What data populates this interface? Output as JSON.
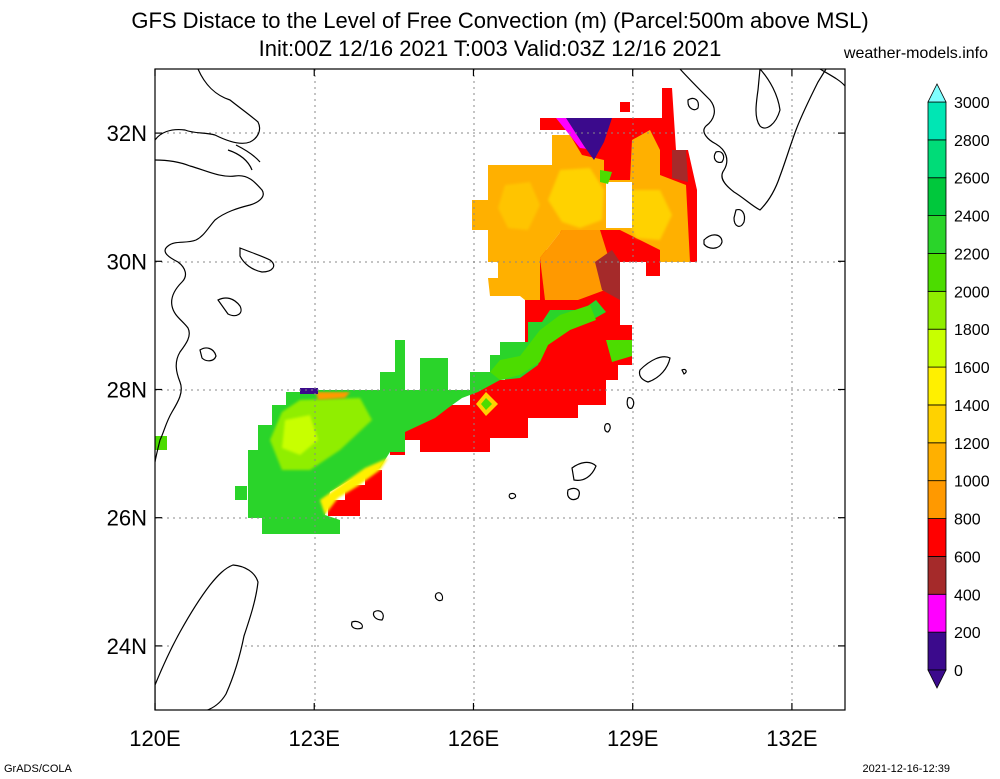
{
  "header": {
    "title_line1": "GFS Distace to the Level of Free Convection (m) (Parcel:500m above MSL)",
    "title_line2": "Init:00Z 12/16 2021 T:003 Valid:03Z 12/16 2021",
    "site": "weather-models.info"
  },
  "footer": {
    "left": "GrADS/COLA",
    "right": "2021-12-16-12:39"
  },
  "map": {
    "lon_range": [
      120,
      133
    ],
    "lat_range": [
      23,
      33
    ],
    "lon_ticks": [
      {
        "value": 120,
        "label": "120E"
      },
      {
        "value": 123,
        "label": "123E"
      },
      {
        "value": 126,
        "label": "126E"
      },
      {
        "value": 129,
        "label": "129E"
      },
      {
        "value": 132,
        "label": "132E"
      }
    ],
    "lat_ticks": [
      {
        "value": 24,
        "label": "24N"
      },
      {
        "value": 26,
        "label": "26N"
      },
      {
        "value": 28,
        "label": "28N"
      },
      {
        "value": 30,
        "label": "30N"
      },
      {
        "value": 32,
        "label": "32N"
      }
    ],
    "grid": "dotted"
  },
  "colorbar": {
    "levels": [
      {
        "label": "0",
        "color": "#3b0a8c"
      },
      {
        "label": "200",
        "color": "#ff00ff"
      },
      {
        "label": "400",
        "color": "#a52a2a"
      },
      {
        "label": "600",
        "color": "#ff0000"
      },
      {
        "label": "800",
        "color": "#ff9900"
      },
      {
        "label": "1000",
        "color": "#ffb000"
      },
      {
        "label": "1200",
        "color": "#ffd200"
      },
      {
        "label": "1400",
        "color": "#fff000"
      },
      {
        "label": "1600",
        "color": "#c8ff00"
      },
      {
        "label": "1800",
        "color": "#90ee00"
      },
      {
        "label": "2000",
        "color": "#4cdc00"
      },
      {
        "label": "2200",
        "color": "#2ad42a"
      },
      {
        "label": "2400",
        "color": "#00c83c"
      },
      {
        "label": "2600",
        "color": "#00dc78"
      },
      {
        "label": "2800",
        "color": "#00e6b4"
      },
      {
        "label": "3000",
        "color": "#00e6dc"
      }
    ],
    "low_end_color": "#3b0a8c",
    "high_end_color": "#7fffff"
  }
}
